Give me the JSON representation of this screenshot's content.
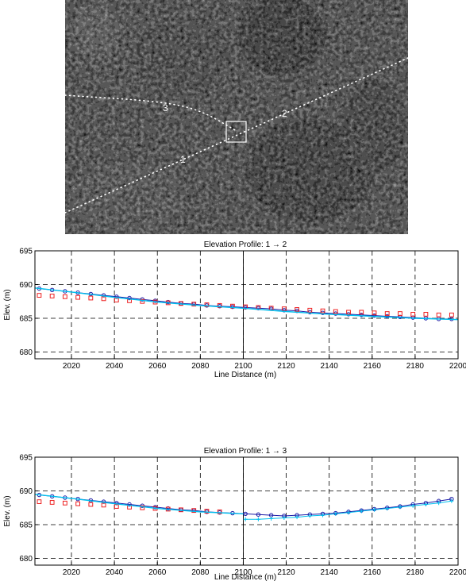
{
  "image_panel": {
    "track_labels": [
      "1",
      "2",
      "3"
    ]
  },
  "chart_data": [
    {
      "type": "line",
      "title": "Elevation Profile: 1 → 2",
      "xlabel": "Line Distance (m)",
      "ylabel": "Elev. (m)",
      "xlim": [
        2003,
        2200
      ],
      "ylim": [
        679,
        695
      ],
      "xticks": [
        2020,
        2040,
        2060,
        2080,
        2100,
        2120,
        2140,
        2160,
        2180,
        2200
      ],
      "yticks": [
        680,
        685,
        690,
        695
      ],
      "grid": true,
      "marker_line_x": 2100,
      "series": [
        {
          "marker": "circle",
          "color": "#1a1aa6",
          "x": [
            2005,
            2011,
            2017,
            2023,
            2029,
            2035,
            2041,
            2047,
            2053,
            2059,
            2065,
            2071,
            2077,
            2083,
            2089,
            2095,
            2101,
            2107,
            2113,
            2119,
            2125,
            2131,
            2137,
            2143,
            2149,
            2155,
            2161,
            2167,
            2173,
            2179,
            2185,
            2191,
            2197
          ],
          "y": [
            689.4,
            689.2,
            689.0,
            688.8,
            688.6,
            688.4,
            688.2,
            688.0,
            687.8,
            687.6,
            687.4,
            687.2,
            687.1,
            686.9,
            686.8,
            686.7,
            686.6,
            686.5,
            686.4,
            686.2,
            686.1,
            685.9,
            685.8,
            685.7,
            685.6,
            685.5,
            685.4,
            685.3,
            685.2,
            685.1,
            685.0,
            684.9,
            684.9
          ]
        },
        {
          "marker": "square",
          "color": "#ee2222",
          "x": [
            2005,
            2011,
            2017,
            2023,
            2029,
            2035,
            2041,
            2047,
            2053,
            2059,
            2065,
            2071,
            2077,
            2083,
            2089,
            2095,
            2101,
            2107,
            2113,
            2119,
            2125,
            2131,
            2137,
            2143,
            2149,
            2155,
            2161,
            2167,
            2173,
            2179,
            2185,
            2191,
            2197
          ],
          "y": [
            688.4,
            688.3,
            688.2,
            688.1,
            688.0,
            687.9,
            687.7,
            687.6,
            687.5,
            687.4,
            687.3,
            687.2,
            687.1,
            687.0,
            686.9,
            686.8,
            686.7,
            686.6,
            686.5,
            686.4,
            686.3,
            686.2,
            686.1,
            686.0,
            685.9,
            685.9,
            685.8,
            685.7,
            685.7,
            685.6,
            685.6,
            685.5,
            685.5
          ]
        },
        {
          "marker": "none",
          "color": "#00c0ee",
          "x": [
            2003,
            2020,
            2040,
            2060,
            2080,
            2100,
            2120,
            2140,
            2160,
            2180,
            2200
          ],
          "y": [
            689.5,
            688.9,
            688.1,
            687.4,
            686.9,
            686.5,
            686.0,
            685.6,
            685.3,
            685.0,
            684.8
          ]
        }
      ]
    },
    {
      "type": "line",
      "title": "Elevation Profile: 1 → 3",
      "xlabel": "Line Distance (m)",
      "ylabel": "Elev. (m)",
      "xlim": [
        2003,
        2200
      ],
      "ylim": [
        679,
        695
      ],
      "xticks": [
        2020,
        2040,
        2060,
        2080,
        2100,
        2120,
        2140,
        2160,
        2180,
        2200
      ],
      "yticks": [
        680,
        685,
        690,
        695
      ],
      "grid": true,
      "marker_line_x": 2100,
      "series": [
        {
          "marker": "circle",
          "color": "#1a1aa6",
          "x": [
            2005,
            2011,
            2017,
            2023,
            2029,
            2035,
            2041,
            2047,
            2053,
            2059,
            2065,
            2071,
            2077,
            2083,
            2089,
            2095,
            2101,
            2107,
            2113,
            2119,
            2125,
            2131,
            2137,
            2143,
            2149,
            2155,
            2161,
            2167,
            2173,
            2179,
            2185,
            2191,
            2197
          ],
          "y": [
            689.4,
            689.2,
            689.0,
            688.8,
            688.6,
            688.4,
            688.2,
            688.0,
            687.8,
            687.6,
            687.4,
            687.2,
            687.1,
            686.9,
            686.8,
            686.7,
            686.6,
            686.5,
            686.4,
            686.3,
            686.4,
            686.5,
            686.6,
            686.7,
            686.9,
            687.1,
            687.3,
            687.5,
            687.7,
            688.0,
            688.2,
            688.5,
            688.8
          ]
        },
        {
          "marker": "square",
          "color": "#ee2222",
          "x": [
            2005,
            2011,
            2017,
            2023,
            2029,
            2035,
            2041,
            2047,
            2053,
            2059,
            2065,
            2071,
            2077,
            2083,
            2089
          ],
          "y": [
            688.4,
            688.3,
            688.2,
            688.1,
            688.0,
            687.9,
            687.7,
            687.6,
            687.5,
            687.4,
            687.3,
            687.2,
            687.1,
            687.0,
            686.9
          ]
        },
        {
          "marker": "none",
          "color": "#00c0ee",
          "x": [
            2003,
            2020,
            2040,
            2060,
            2080,
            2100
          ],
          "y": [
            689.5,
            688.9,
            688.1,
            687.4,
            686.9,
            686.6
          ]
        },
        {
          "marker": "plus",
          "color": "#00c0ee",
          "x": [
            2101,
            2107,
            2113,
            2119,
            2125,
            2131,
            2137,
            2143,
            2149,
            2155,
            2161,
            2167,
            2173,
            2179,
            2185,
            2191,
            2197
          ],
          "y": [
            685.8,
            685.8,
            685.9,
            686.0,
            686.1,
            686.3,
            686.4,
            686.6,
            686.8,
            687.0,
            687.2,
            687.4,
            687.6,
            687.8,
            688.0,
            688.2,
            688.5
          ]
        }
      ]
    }
  ]
}
